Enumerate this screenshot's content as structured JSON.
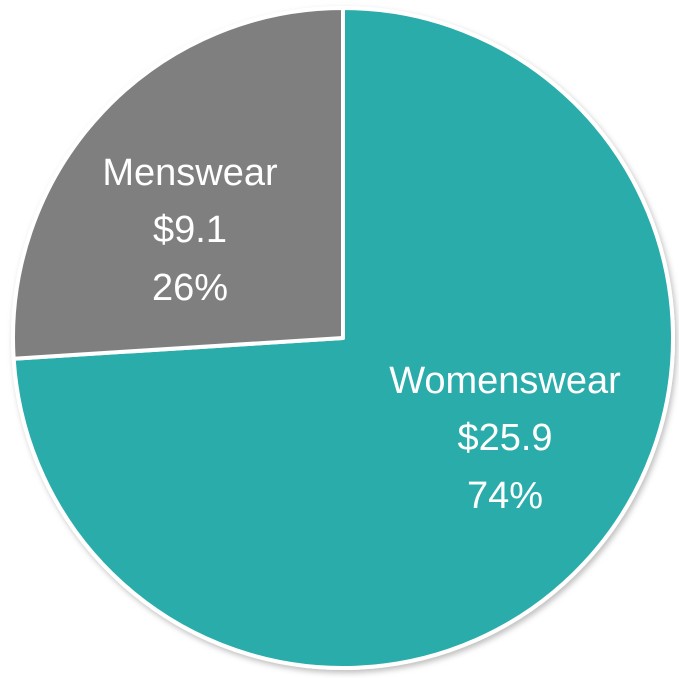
{
  "chart_data": {
    "type": "pie",
    "categories": [
      "Womenswear",
      "Menswear"
    ],
    "values": [
      74,
      26
    ],
    "value_labels": [
      "74%",
      "26%"
    ],
    "amounts": [
      25.9,
      9.1
    ],
    "amount_labels": [
      "$25.9",
      "$9.1"
    ],
    "colors": [
      "#2aacaa",
      "#7f7f7f"
    ]
  }
}
